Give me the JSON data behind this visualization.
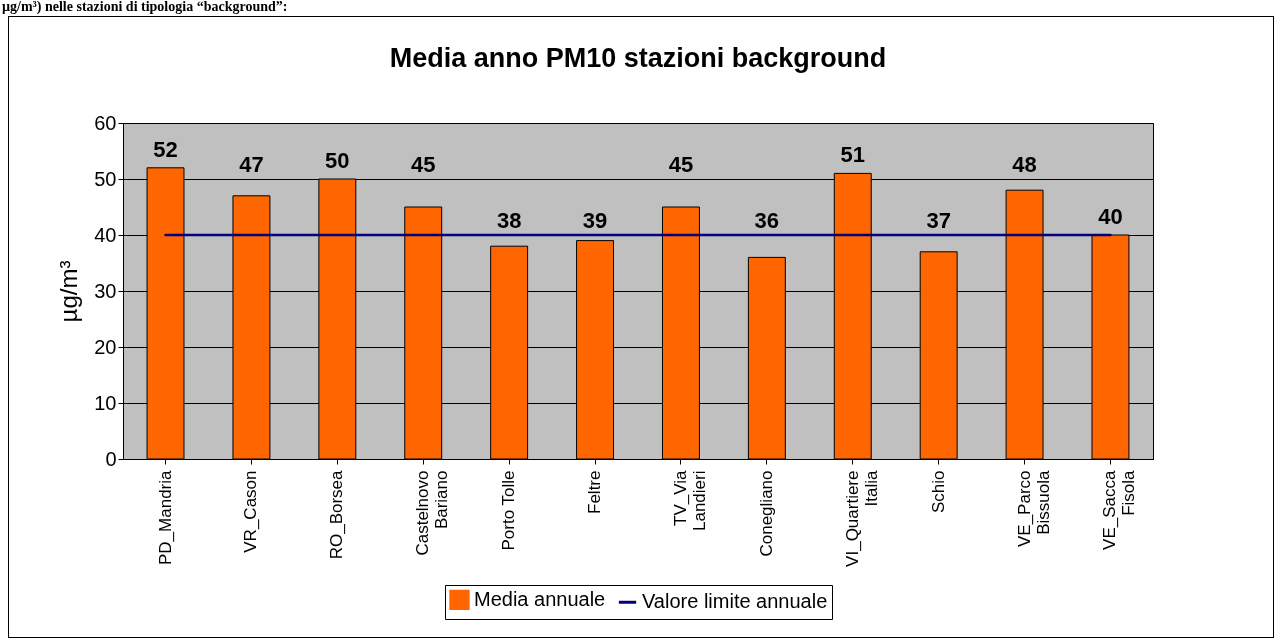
{
  "chart_data": {
    "type": "bar",
    "title": "Media anno PM10 stazioni background",
    "ylabel": "µg/m³",
    "annotations": [
      "µg/m³) nelle stazioni di tipologia “background”:"
    ],
    "categories": [
      "PD_Mandria",
      "VR_Cason",
      "RO_Borsea",
      "Castelnovo Bariano",
      "Porto Tolle",
      "Feltre",
      "TV_Via Landieri",
      "Conegliano",
      "VI_Quartiere Italia",
      "Schio",
      "VE_Parco Bissuola",
      "VE_Sacca Fisola"
    ],
    "series": [
      {
        "name": "Media annuale",
        "color": "#ff6600",
        "values": [
          52,
          47,
          50,
          45,
          38,
          39,
          45,
          36,
          51,
          37,
          48,
          40
        ],
        "value_labels": [
          "52",
          "47",
          "50",
          "45",
          "38",
          "39",
          "45",
          "36",
          "51",
          "37",
          "48",
          "40"
        ]
      },
      {
        "name": "Valore limite annuale",
        "type": "line",
        "color": "#000080",
        "values": [
          40,
          40,
          40,
          40,
          40,
          40,
          40,
          40,
          40,
          40,
          40,
          40
        ]
      }
    ],
    "ylim": [
      0,
      60
    ],
    "yticks": [
      0,
      10,
      20,
      30,
      40,
      50,
      60
    ],
    "grid": "y",
    "legend": "bottom"
  }
}
